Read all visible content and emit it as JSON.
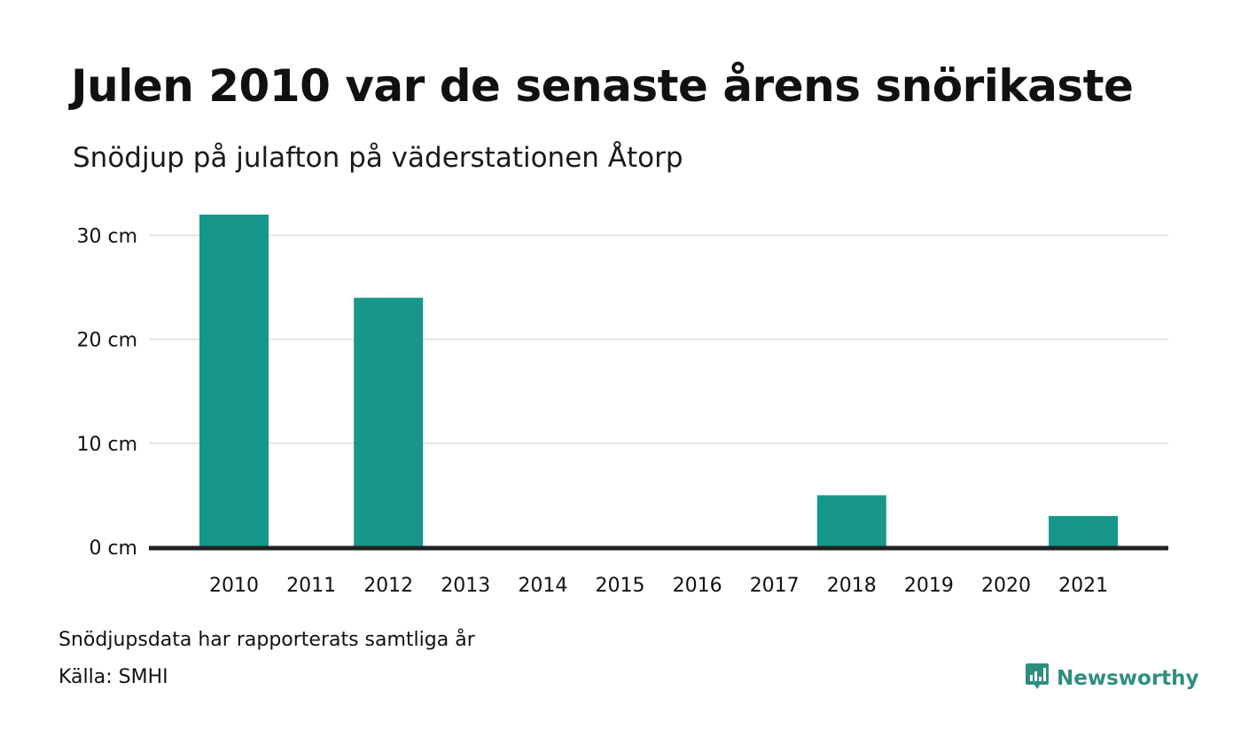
{
  "chart_data": {
    "type": "bar",
    "title": "Julen 2010 var de senaste årens snörikaste",
    "subtitle": "Snödjup på julafton på väderstationen Åtorp",
    "categories": [
      "2010",
      "2011",
      "2012",
      "2013",
      "2014",
      "2015",
      "2016",
      "2017",
      "2018",
      "2019",
      "2020",
      "2021"
    ],
    "values": [
      32,
      0,
      24,
      0,
      0,
      0,
      0,
      0,
      5,
      0,
      0,
      3
    ],
    "unit": "cm",
    "ylim": [
      0,
      33
    ],
    "yticks": [
      0,
      10,
      20,
      30
    ],
    "ytick_labels": [
      "0 cm",
      "10 cm",
      "20 cm",
      "30 cm"
    ],
    "xlabel": "",
    "ylabel": "",
    "grid": true,
    "bar_color": "#16978a"
  },
  "footer": {
    "note": "Snödjupsdata har rapporterats samtliga år",
    "source": "Källa: SMHI"
  },
  "brand": {
    "name": "Newsworthy",
    "icon": "newsworthy-logo-icon",
    "color": "#2f8f7f"
  }
}
